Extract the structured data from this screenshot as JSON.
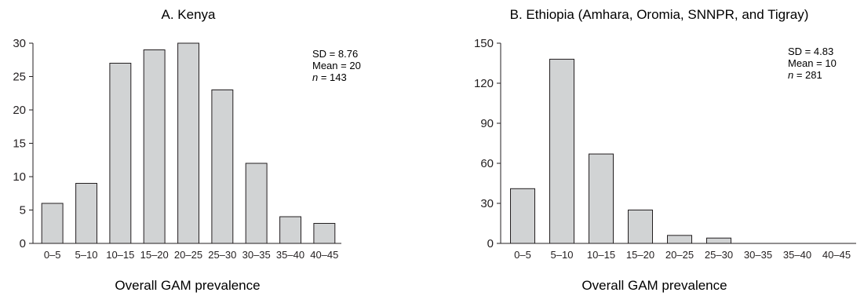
{
  "colors": {
    "bar_fill": "#d1d3d4",
    "bar_stroke": "#231f20",
    "axis": "#231f20",
    "text": "#231f20"
  },
  "chart_data": [
    {
      "type": "bar",
      "title": "A. Kenya",
      "xlabel": "Overall GAM prevalence",
      "ylabel": "",
      "categories": [
        "0–5",
        "5–10",
        "10–15",
        "15–20",
        "20–25",
        "25–30",
        "30–35",
        "35–40",
        "40–45"
      ],
      "values": [
        6,
        9,
        27,
        29,
        30,
        23,
        12,
        4,
        3
      ],
      "ylim": [
        0,
        30
      ],
      "yticks": [
        0,
        5,
        10,
        15,
        20,
        25,
        30
      ],
      "grid": false,
      "stats": {
        "sd": "SD = 8.76",
        "mean": "Mean = 20",
        "n_label": "n",
        "n_value": " = 143"
      }
    },
    {
      "type": "bar",
      "title": "B. Ethiopia (Amhara, Oromia, SNNPR, and Tigray)",
      "xlabel": "Overall GAM prevalence",
      "ylabel": "",
      "categories": [
        "0–5",
        "5–10",
        "10–15",
        "15–20",
        "20–25",
        "25–30",
        "30–35",
        "35–40",
        "40–45"
      ],
      "values": [
        41,
        138,
        67,
        25,
        6,
        4,
        0,
        0,
        0
      ],
      "ylim": [
        0,
        150
      ],
      "yticks": [
        0,
        30,
        60,
        90,
        120,
        150
      ],
      "grid": false,
      "stats": {
        "sd": "SD = 4.83",
        "mean": "Mean = 10",
        "n_label": "n",
        "n_value": " = 281"
      }
    }
  ]
}
